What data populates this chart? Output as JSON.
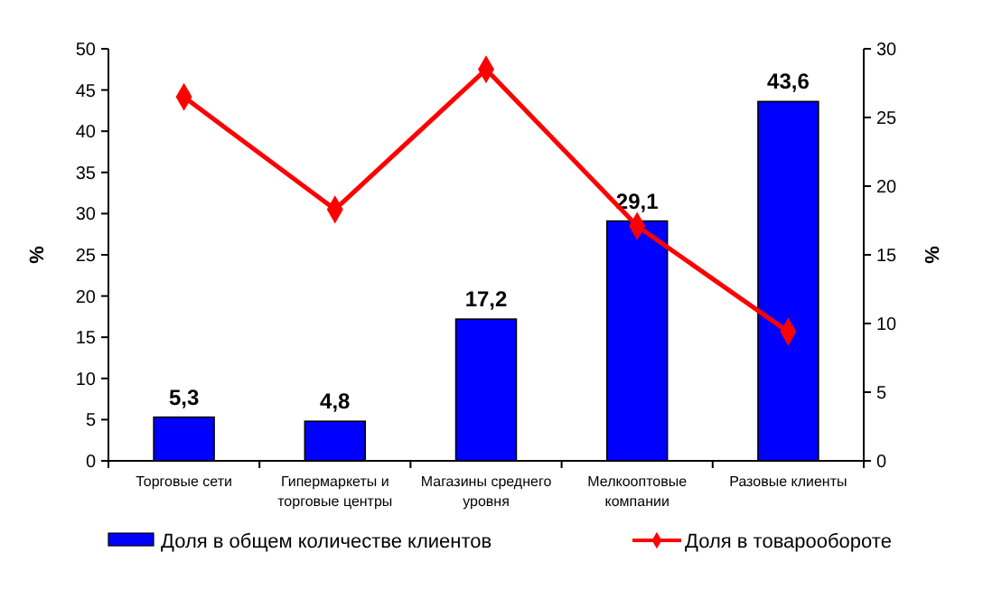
{
  "chart_data": {
    "type": "bar",
    "categories": [
      "Торговые сети",
      "Гипермаркеты и торговые центры",
      "Магазины среднего уровня",
      "Мелкооптовые компании",
      "Разовые клиенты"
    ],
    "ylabel": "%",
    "y2label": "%",
    "ylim": [
      0,
      50
    ],
    "yticks": [
      0,
      5,
      10,
      15,
      20,
      25,
      30,
      35,
      40,
      45,
      50
    ],
    "y2lim": [
      0,
      30
    ],
    "y2ticks": [
      0,
      5,
      10,
      15,
      20,
      25,
      30
    ],
    "series": [
      {
        "name": "Доля в общем количестве клиентов",
        "color": "#0000ff",
        "values": [
          5.3,
          4.8,
          17.2,
          29.1,
          43.6
        ],
        "value_labels": [
          "5,3",
          "4,8",
          "17,2",
          "29,1",
          "43,6"
        ]
      },
      {
        "name": "Доля в товарообороте",
        "type": "line",
        "axis": "y2",
        "color": "#ff0000",
        "marker": "diamond",
        "values": [
          26.5,
          18.3,
          28.5,
          17.1,
          9.4
        ]
      }
    ],
    "legend": "bottom",
    "grid": false
  }
}
